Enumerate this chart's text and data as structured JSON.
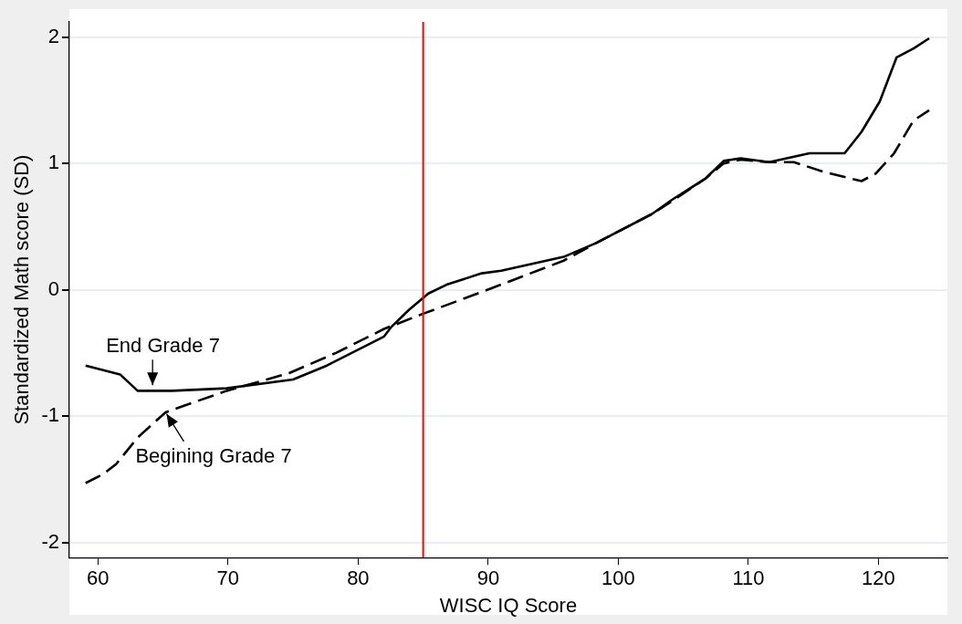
{
  "chart_data": {
    "type": "line",
    "xlabel": "WISC IQ Score",
    "ylabel": "Standardized Math score (SD)",
    "xlim": [
      57.8,
      125.3
    ],
    "ylim": [
      -2.12,
      2.12
    ],
    "xticks": [
      60,
      70,
      80,
      90,
      100,
      110,
      120
    ],
    "yticks": [
      -2,
      -1,
      0,
      1,
      2
    ],
    "grid": "y",
    "legend": false,
    "marker": "none",
    "series": [
      {
        "color": "#000000",
        "line_style": "solid",
        "x": [
          59.05,
          61.7,
          63.05,
          65.7,
          69.9,
          75.0,
          77.6,
          82.0,
          82.5,
          83.9,
          85.4,
          86.8,
          89.5,
          91.0,
          95.8,
          98.3,
          102.6,
          104.1,
          106.7,
          108.1,
          109.4,
          111.6,
          114.7,
          117.4,
          118.7,
          120.1,
          121.4,
          122.7,
          123.9
        ],
        "values": [
          -0.6,
          -0.67,
          -0.8,
          -0.8,
          -0.78,
          -0.71,
          -0.6,
          -0.37,
          -0.3,
          -0.16,
          -0.03,
          0.04,
          0.13,
          0.15,
          0.26,
          0.37,
          0.6,
          0.71,
          0.88,
          1.02,
          1.04,
          1.01,
          1.08,
          1.08,
          1.25,
          1.49,
          1.84,
          1.91,
          1.99
        ]
      },
      {
        "color": "#000000",
        "line_style": "dashed",
        "x": [
          59.05,
          60.4,
          61.4,
          63.05,
          65.2,
          67.4,
          69.9,
          74.7,
          78.3,
          82.0,
          85.0,
          89.7,
          95.8,
          98.3,
          102.6,
          104.1,
          106.7,
          108.1,
          109.4,
          111.6,
          113.5,
          115.9,
          118.7,
          119.8,
          121.2,
          122.7,
          123.9
        ],
        "values": [
          -1.53,
          -1.46,
          -1.38,
          -1.17,
          -0.97,
          -0.89,
          -0.8,
          -0.66,
          -0.5,
          -0.31,
          -0.19,
          -0.01,
          0.23,
          0.37,
          0.6,
          0.7,
          0.88,
          1.0,
          1.03,
          1.01,
          1.01,
          0.93,
          0.86,
          0.92,
          1.08,
          1.34,
          1.42
        ]
      }
    ],
    "ref_lines": [
      {
        "axis": "x",
        "value": 85,
        "color": "#ff0000"
      }
    ],
    "annotations": [
      {
        "text": "End Grade 7",
        "x": 64.2,
        "y": -0.77
      },
      {
        "text": "Begining Grade 7",
        "x": 65.2,
        "y": -0.97
      }
    ]
  }
}
